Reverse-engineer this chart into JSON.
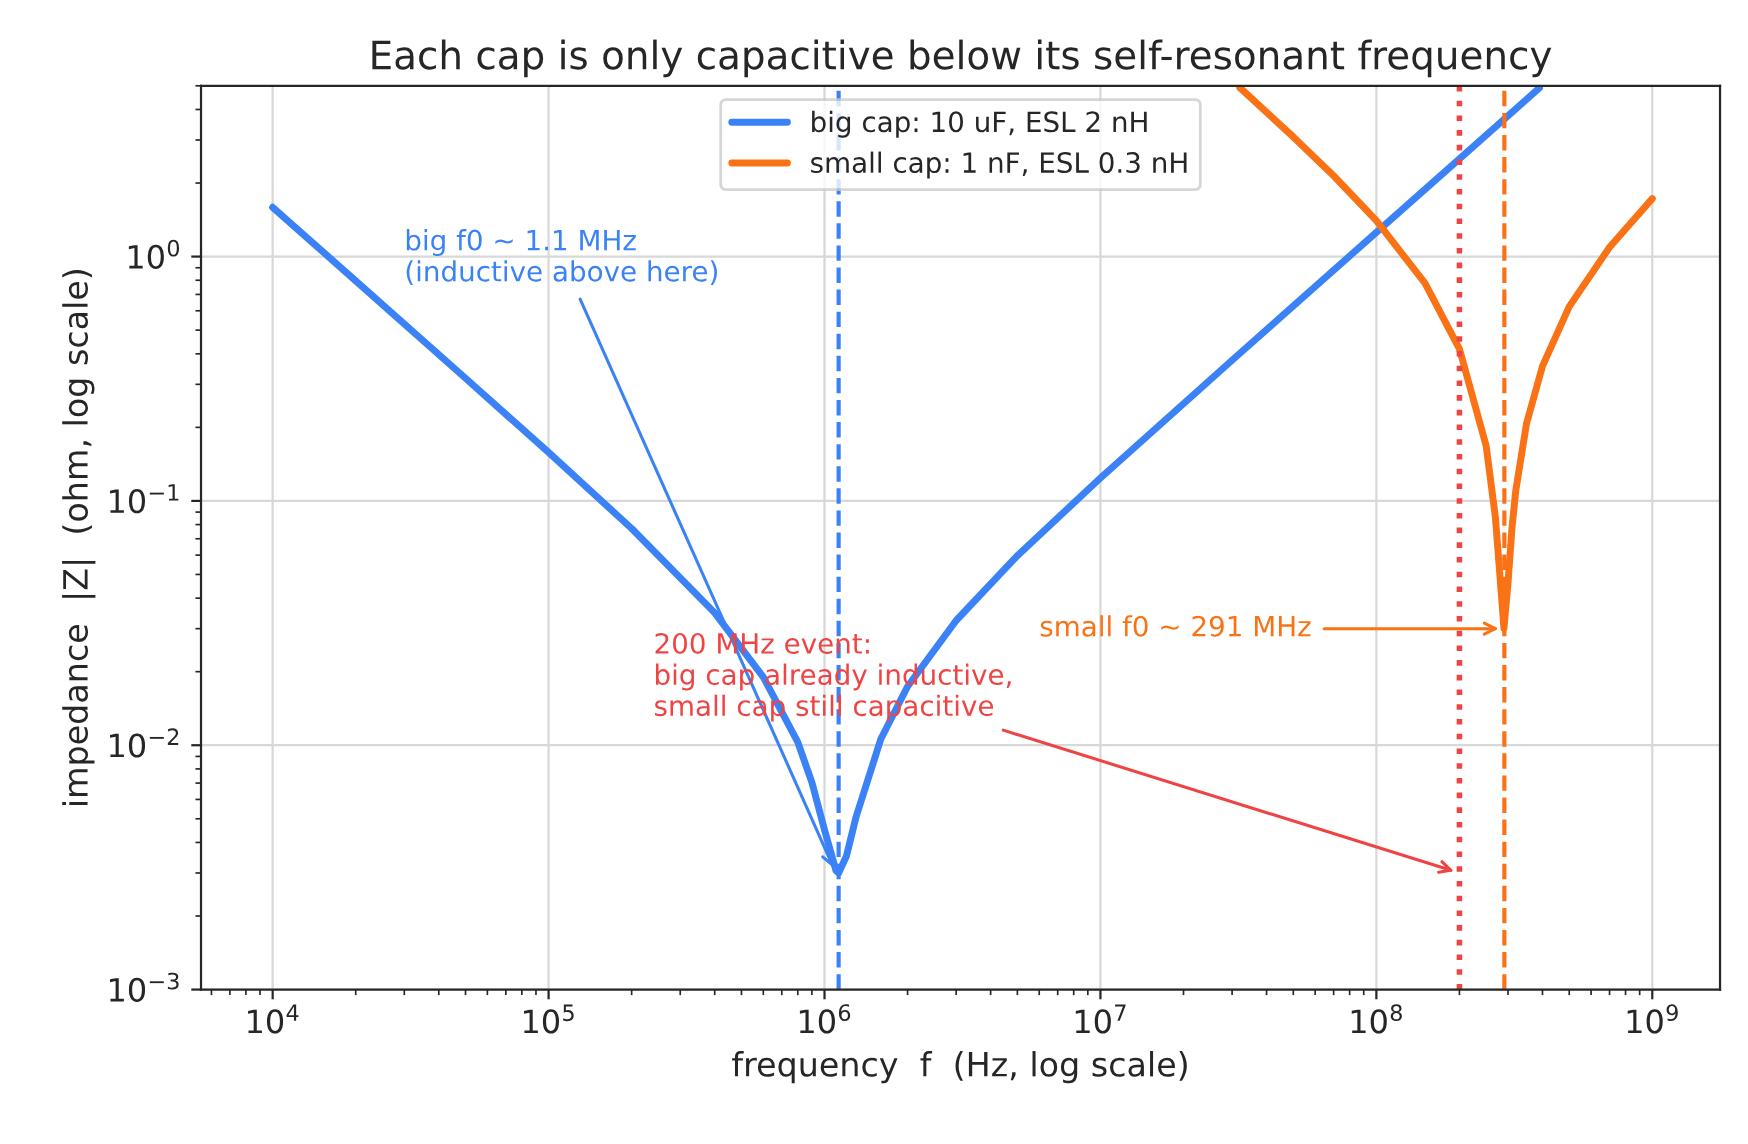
{
  "chart_data": {
    "type": "line",
    "title": "Each cap is only capacitive below its self-resonant frequency",
    "xlabel": "frequency  f  (Hz, log scale)",
    "ylabel": "impedance  |Z|  (ohm, log scale)",
    "log": "xy",
    "xlim": [
      5500,
      1760000000
    ],
    "ylim": [
      0.001,
      5
    ],
    "xticks": [
      {
        "value": 10000,
        "label": "10$^{4}$"
      },
      {
        "value": 100000,
        "label": "10$^{5}$"
      },
      {
        "value": 1000000,
        "label": "10$^{6}$"
      },
      {
        "value": 10000000,
        "label": "10$^{7}$"
      },
      {
        "value": 100000000,
        "label": "10$^{8}$"
      },
      {
        "value": 1000000000,
        "label": "10$^{9}$"
      }
    ],
    "yticks": [
      {
        "value": 0.001,
        "label": "10$^{−3}$"
      },
      {
        "value": 0.01,
        "label": "10$^{−2}$"
      },
      {
        "value": 0.1,
        "label": "10$^{−1}$"
      },
      {
        "value": 1,
        "label": "10$^{0}$"
      }
    ],
    "grid": true,
    "legend": "top",
    "line_style": "solid",
    "marker": "none",
    "series": [
      {
        "name": "big cap: 10 uF, ESL 2 nH",
        "color": "#3b82f6",
        "x": [
          10000,
          20000,
          50000,
          100000,
          200000,
          400000,
          600000,
          800000,
          900000,
          1000000,
          1100000,
          1125000,
          1200000,
          1300000,
          1600000,
          2000000,
          3000000,
          5000000,
          10000000,
          30000000,
          100000000,
          200000000,
          390000000
        ],
        "values": [
          1.591,
          0.7955,
          0.3177,
          0.1579,
          0.0771,
          0.0348,
          0.019,
          0.0103,
          0.00704,
          0.0045,
          0.00307,
          0.003,
          0.00351,
          0.00507,
          0.0106,
          0.0174,
          0.0324,
          0.0597,
          0.1241,
          0.3765,
          1.2566,
          2.513,
          4.9
        ]
      },
      {
        "name": "small cap: 1 nF, ESL 0.3 nH",
        "color": "#f97316",
        "x": [
          32000000,
          50000000,
          70000000,
          100000000,
          150000000,
          200000000,
          250000000,
          270000000,
          280000000,
          290000000,
          300000000,
          310000000,
          320000000,
          350000000,
          400000000,
          500000000,
          700000000,
          1000000000
        ],
        "values": [
          4.913,
          3.089,
          2.142,
          1.403,
          0.778,
          0.4188,
          0.168,
          0.0858,
          0.0505,
          0.0301,
          0.0461,
          0.0771,
          0.11,
          0.207,
          0.356,
          0.624,
          1.092,
          1.726
        ]
      }
    ],
    "ref_lines": [
      {
        "axis": "x",
        "value": 1125000,
        "color": "#3b82f6",
        "line_style": "dashed"
      },
      {
        "axis": "x",
        "value": 291000000,
        "color": "#f97316",
        "line_style": "dashed"
      },
      {
        "axis": "x",
        "value": 200000000,
        "color": "#ef4444",
        "line_style": "dotted"
      }
    ],
    "annotations": [
      {
        "text": "big f0 ~ 1.1 MHz\n(inductive above here)",
        "x": 1100000,
        "y": 0.003
      },
      {
        "text": "small f0 ~ 291 MHz",
        "x": 291000000,
        "y": 0.03
      },
      {
        "text": "200 MHz event:\nbig cap already inductive,\nsmall cap still capacitive",
        "x": 200000000,
        "y": 0.003
      }
    ]
  }
}
